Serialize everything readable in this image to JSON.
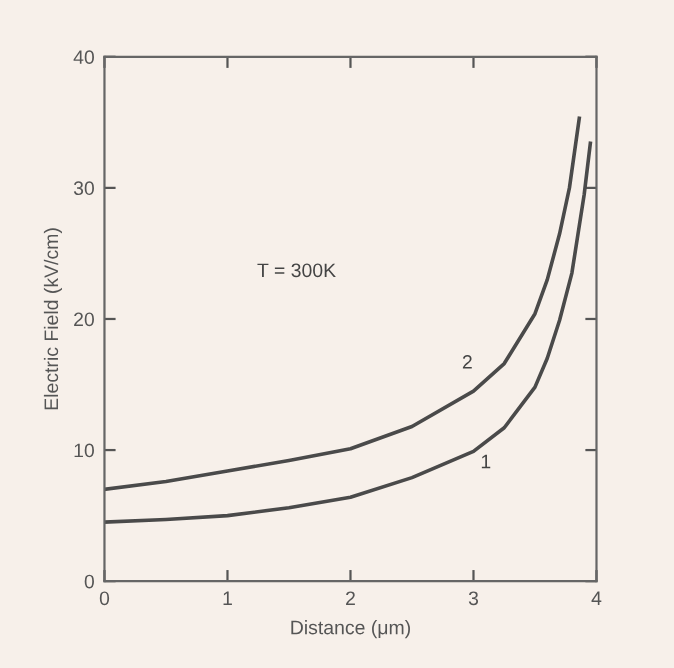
{
  "chart_data": {
    "type": "line",
    "xlabel": "Distance (μm)",
    "ylabel": "Electric Field (kV/cm)",
    "xlim": [
      0,
      4
    ],
    "ylim": [
      0,
      40
    ],
    "xticks": [
      0,
      1,
      2,
      3,
      4
    ],
    "yticks": [
      0,
      10,
      20,
      30,
      40
    ],
    "grid": false,
    "legend": false,
    "marker": "none",
    "line_style": "solid",
    "annotations": [
      "T = 300K"
    ],
    "series": [
      {
        "name": "1",
        "color": "#4a4a4a",
        "x": [
          0,
          0.5,
          1,
          1.5,
          2,
          2.5,
          3,
          3.25,
          3.5,
          3.6,
          3.7,
          3.8,
          3.85,
          3.9,
          3.95
        ],
        "values": [
          4.5,
          4.7,
          5.0,
          5.6,
          6.4,
          7.9,
          9.9,
          11.7,
          14.8,
          17.0,
          19.9,
          23.5,
          26.5,
          29.5,
          33.4
        ]
      },
      {
        "name": "2",
        "color": "#4a4a4a",
        "x": [
          0,
          0.5,
          1,
          1.5,
          2,
          2.5,
          3,
          3.25,
          3.5,
          3.6,
          3.7,
          3.78,
          3.86
        ],
        "values": [
          7.0,
          7.6,
          8.4,
          9.2,
          10.1,
          11.8,
          14.5,
          16.6,
          20.4,
          23.0,
          26.5,
          30.0,
          35.3
        ]
      }
    ]
  }
}
